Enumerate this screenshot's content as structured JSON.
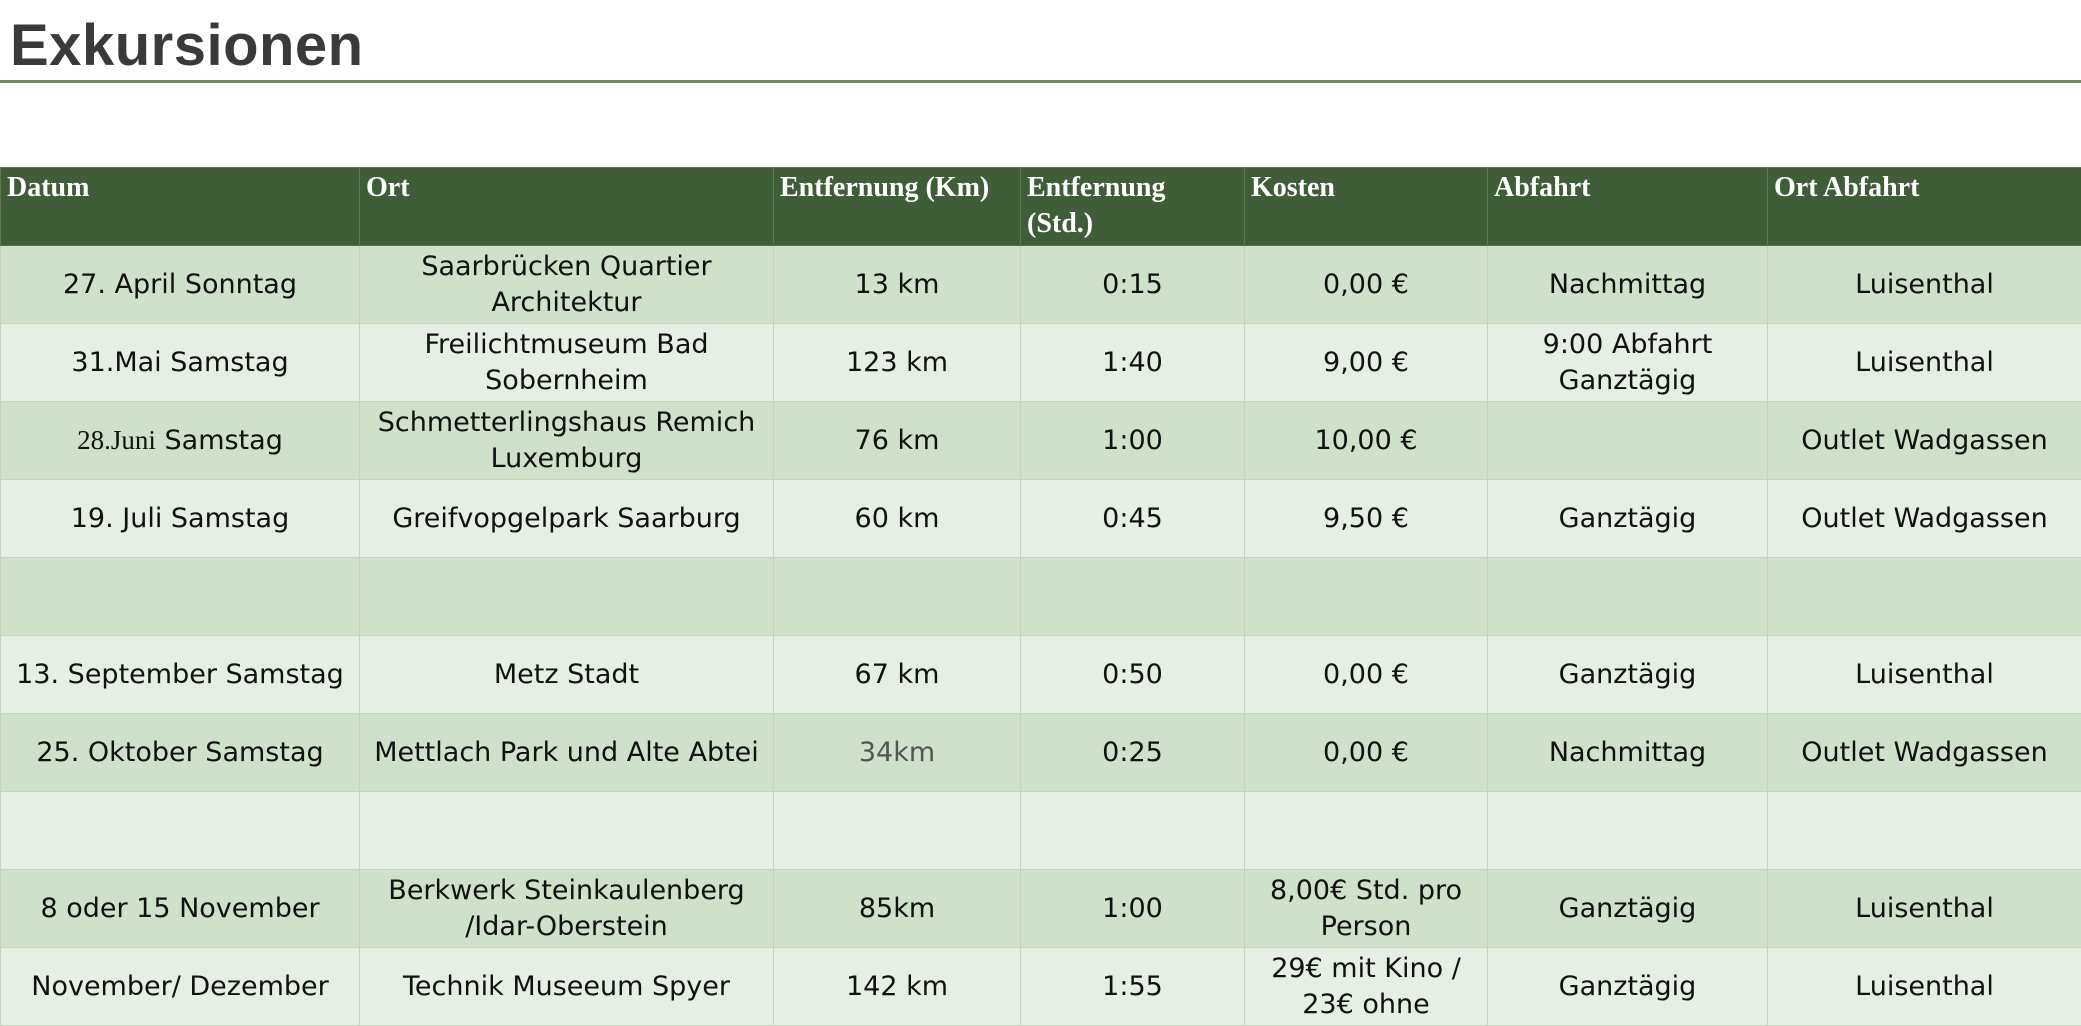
{
  "title": "Exkursionen",
  "columns": [
    "Datum",
    "Ort",
    "Entfernung (Km)",
    "Entfernung (Std.)",
    "Kosten",
    "Abfahrt",
    "Ort Abfahrt"
  ],
  "rows": [
    {
      "datum": "27. April Sonntag",
      "ort": "Saarbrücken Quartier Architektur",
      "km": "13 km",
      "std": "0:15",
      "kosten": "0,00 €",
      "abfahrt": "Nachmittag",
      "ort_abfahrt": "Luisenthal"
    },
    {
      "datum": "31.Mai Samstag",
      "ort": "Freilichtmuseum Bad Sobernheim",
      "km": "123 km",
      "std": "1:40",
      "kosten": "9,00 €",
      "abfahrt": "9:00 Abfahrt Ganztägig",
      "ort_abfahrt": "Luisenthal"
    },
    {
      "datum_part1": "28.Juni",
      "datum_part2": " Samstag",
      "ort": "Schmetterlingshaus Remich Luxemburg",
      "km": "76 km",
      "std": "1:00",
      "kosten": "10,00 €",
      "abfahrt": "",
      "ort_abfahrt": "Outlet Wadgassen"
    },
    {
      "datum": "19. Juli Samstag",
      "ort": "Greifvopgelpark Saarburg",
      "km": "60 km",
      "std": "0:45",
      "kosten": "9,50 €",
      "abfahrt": "Ganztägig",
      "ort_abfahrt": "Outlet Wadgassen"
    },
    {
      "datum": "",
      "ort": "",
      "km": "",
      "std": "",
      "kosten": "",
      "abfahrt": "",
      "ort_abfahrt": ""
    },
    {
      "datum": "13. September Samstag",
      "ort": "Metz Stadt",
      "km": "67 km",
      "std": "0:50",
      "kosten": "0,00 €",
      "abfahrt": "Ganztägig",
      "ort_abfahrt": "Luisenthal"
    },
    {
      "datum": "25. Oktober Samstag",
      "ort": "Mettlach Park und Alte Abtei",
      "km": "34km",
      "std": "0:25",
      "kosten": "0,00 €",
      "abfahrt": "Nachmittag",
      "ort_abfahrt": "Outlet Wadgassen"
    },
    {
      "datum": "",
      "ort": "",
      "km": "",
      "std": "",
      "kosten": "",
      "abfahrt": "",
      "ort_abfahrt": ""
    },
    {
      "datum": "8 oder 15 November",
      "ort": "Berkwerk Steinkaulenberg /Idar-Oberstein",
      "km": "85km",
      "std": "1:00",
      "kosten": "8,00€ Std. pro Person",
      "abfahrt": "Ganztägig",
      "ort_abfahrt": "Luisenthal"
    },
    {
      "datum": "November/ Dezember",
      "ort": "Technik Museeum Spyer",
      "km": "142 km",
      "std": "1:55",
      "kosten": "29€ mit Kino / 23€ ohne",
      "abfahrt": "Ganztägig",
      "ort_abfahrt": "Luisenthal"
    }
  ]
}
